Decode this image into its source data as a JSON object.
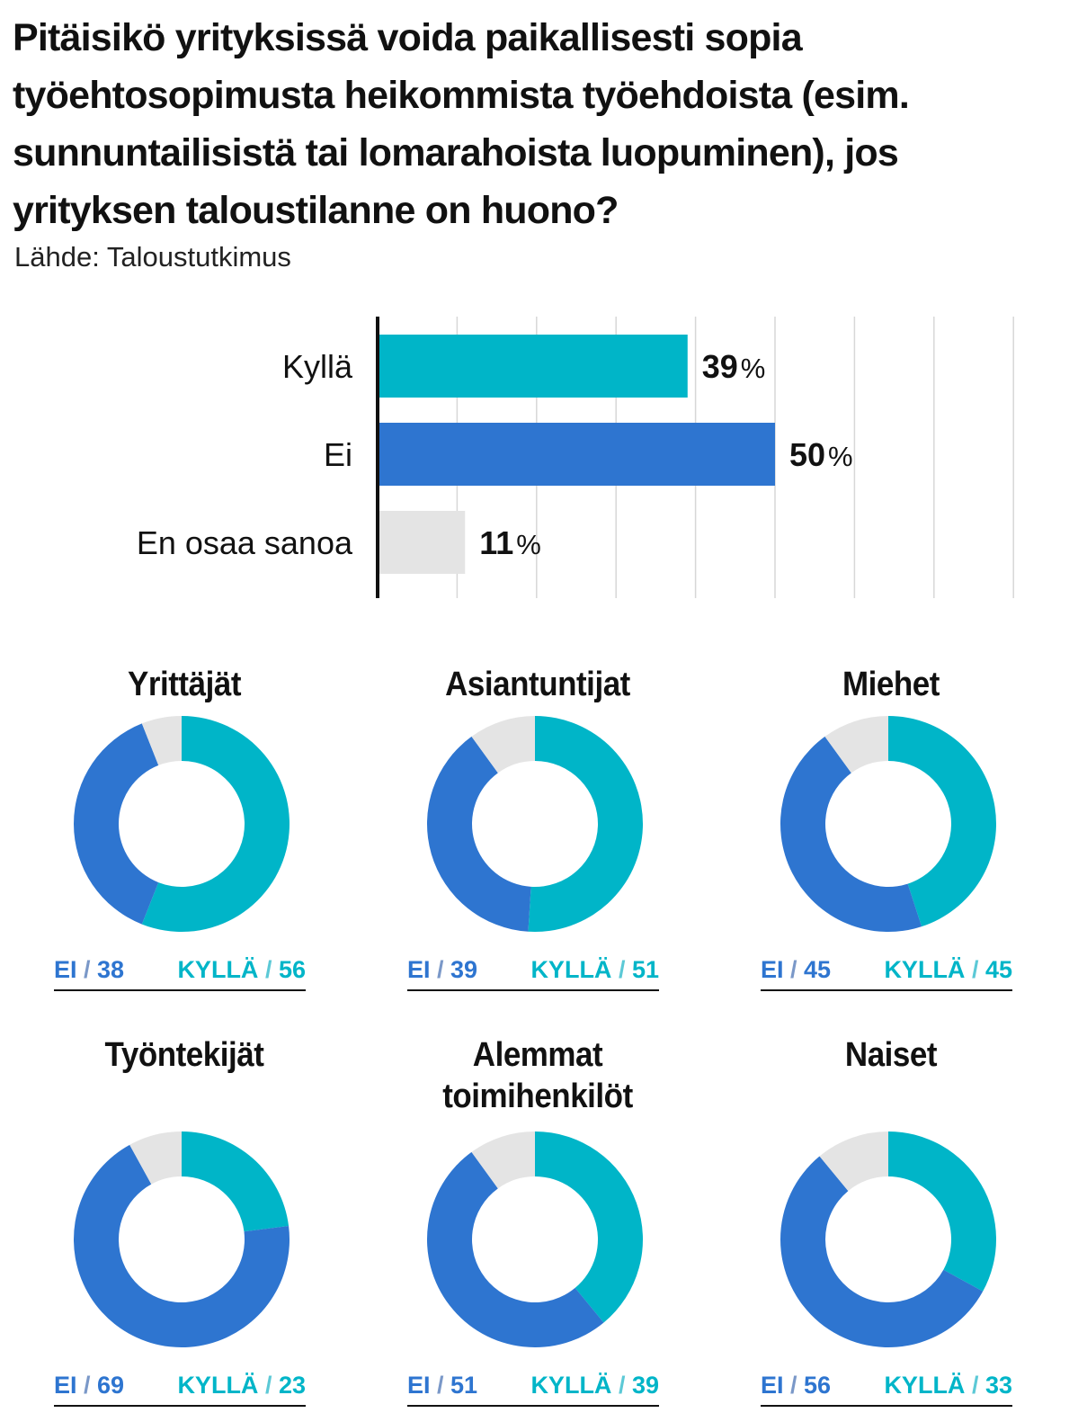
{
  "title": "Pitäisikö yrityksissä voida paikallisesti sopia työehtosopimusta heikommista työehdoista (esim. sunnuntailisistä tai lomarahoista luopuminen), jos yrityksen taloustilanne on huono?",
  "source": "Lähde: Taloustutkimus",
  "colors": {
    "kylla": "#00b5c8",
    "ei": "#2e75d0",
    "eos": "#e4e4e4",
    "grid": "#d7d7d7",
    "axis": "#111111"
  },
  "chart_data": [
    {
      "type": "bar",
      "orientation": "horizontal",
      "categories": [
        "Kyllä",
        "Ei",
        "En osaa sanoa"
      ],
      "values": [
        39,
        50,
        11
      ],
      "value_suffix": "%",
      "xlim": [
        0,
        80
      ],
      "grid": true
    },
    {
      "type": "pie",
      "donut": true,
      "title": "Yrittäjät",
      "labels": [
        "Kyllä",
        "Ei",
        "En osaa sanoa"
      ],
      "values": [
        56,
        38,
        6
      ],
      "legend": {
        "ei": "EI",
        "kylla": "KYLLÄ"
      }
    },
    {
      "type": "pie",
      "donut": true,
      "title": "Asiantuntijat",
      "labels": [
        "Kyllä",
        "Ei",
        "En osaa sanoa"
      ],
      "values": [
        51,
        39,
        10
      ],
      "legend": {
        "ei": "EI",
        "kylla": "KYLLÄ"
      }
    },
    {
      "type": "pie",
      "donut": true,
      "title": "Miehet",
      "labels": [
        "Kyllä",
        "Ei",
        "En osaa sanoa"
      ],
      "values": [
        45,
        45,
        10
      ],
      "legend": {
        "ei": "EI",
        "kylla": "KYLLÄ"
      }
    },
    {
      "type": "pie",
      "donut": true,
      "title": "Työntekijät",
      "labels": [
        "Kyllä",
        "Ei",
        "En osaa sanoa"
      ],
      "values": [
        23,
        69,
        8
      ],
      "legend": {
        "ei": "EI",
        "kylla": "KYLLÄ"
      }
    },
    {
      "type": "pie",
      "donut": true,
      "title": "Alemmat toimihenkilöt",
      "labels": [
        "Kyllä",
        "Ei",
        "En osaa sanoa"
      ],
      "values": [
        39,
        51,
        10
      ],
      "legend": {
        "ei": "EI",
        "kylla": "KYLLÄ"
      }
    },
    {
      "type": "pie",
      "donut": true,
      "title": "Naiset",
      "labels": [
        "Kyllä",
        "Ei",
        "En osaa sanoa"
      ],
      "values": [
        33,
        56,
        11
      ],
      "legend": {
        "ei": "EI",
        "kylla": "KYLLÄ"
      }
    }
  ]
}
